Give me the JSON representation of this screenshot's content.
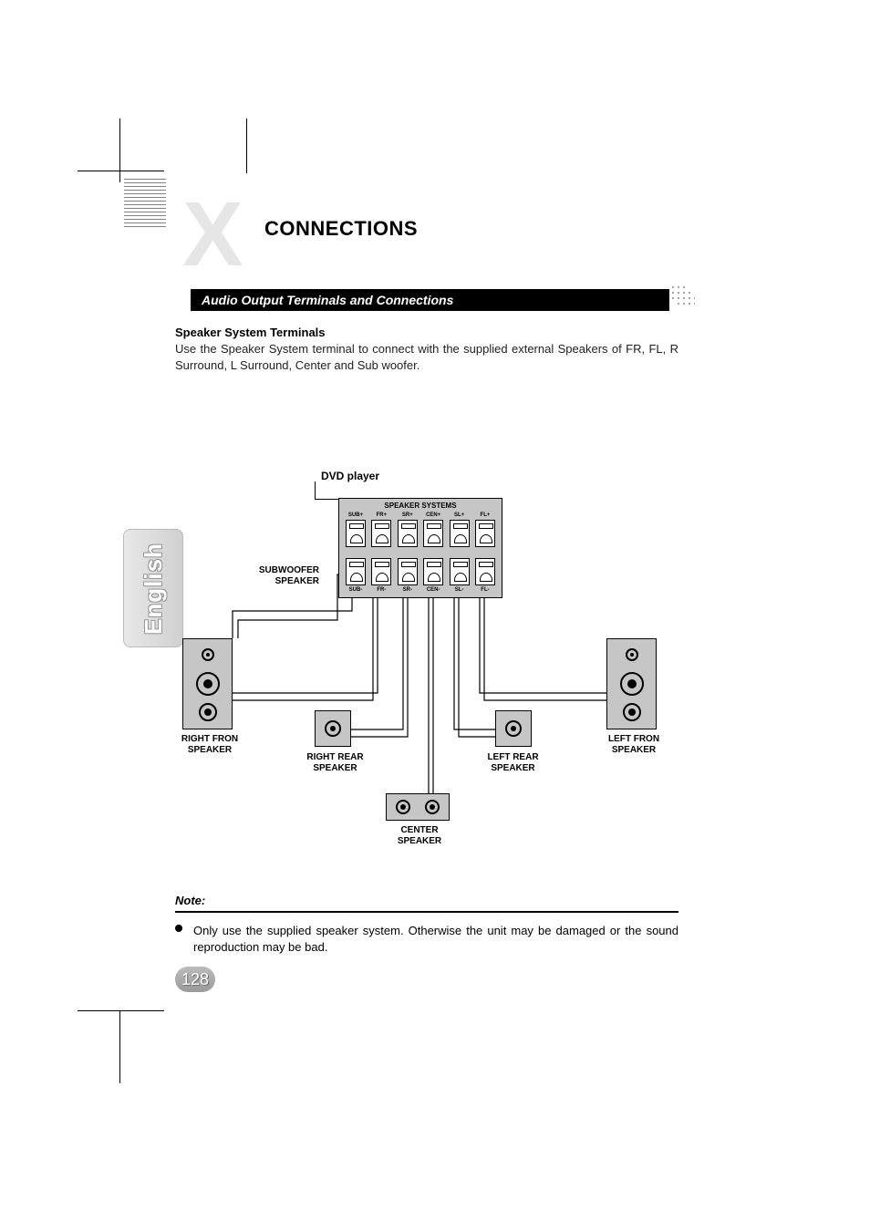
{
  "header": {
    "watermark_letter": "X",
    "title": "CONNECTIONS",
    "subtitle": "Audio Output Terminals and Connections"
  },
  "section": {
    "heading": "Speaker System Terminals",
    "paragraph": "Use the Speaker System terminal to connect with the supplied external Speakers of FR, FL, R Surround, L Surround, Center and Sub woofer."
  },
  "language_tab": "English",
  "diagram": {
    "dvd_label": "DVD player",
    "panel_title": "SPEAKER SYSTEMS",
    "terminals_top": [
      "SUB+",
      "FR+",
      "SR+",
      "CEN+",
      "SL+",
      "FL+"
    ],
    "terminals_bottom": [
      "SUB-",
      "FR-",
      "SR-",
      "CEN-",
      "SL-",
      "FL-"
    ],
    "speakers": {
      "subwoofer": "SUBWOOFER\nSPEAKER",
      "right_front": "RIGHT FRON\nSPEAKER",
      "right_rear": "RIGHT REAR\nSPEAKER",
      "center": "CENTER\nSPEAKER",
      "left_rear": "LEFT REAR\nSPEAKER",
      "left_front": "LEFT FRON\nSPEAKER"
    },
    "colors": {
      "panel_bg": "#c6c6c6",
      "speaker_bg": "#c6c6c6",
      "line": "#000000"
    }
  },
  "note": {
    "title": "Note:",
    "text": "Only use the supplied speaker system. Otherwise the unit may be damaged or the sound reproduction may be bad."
  },
  "page_number": "128",
  "style": {
    "title_fontsize": 22,
    "body_fontsize": 13,
    "watermark_color": "#e6e6e6",
    "subtitle_bg": "#000000",
    "subtitle_fg": "#ffffff"
  }
}
